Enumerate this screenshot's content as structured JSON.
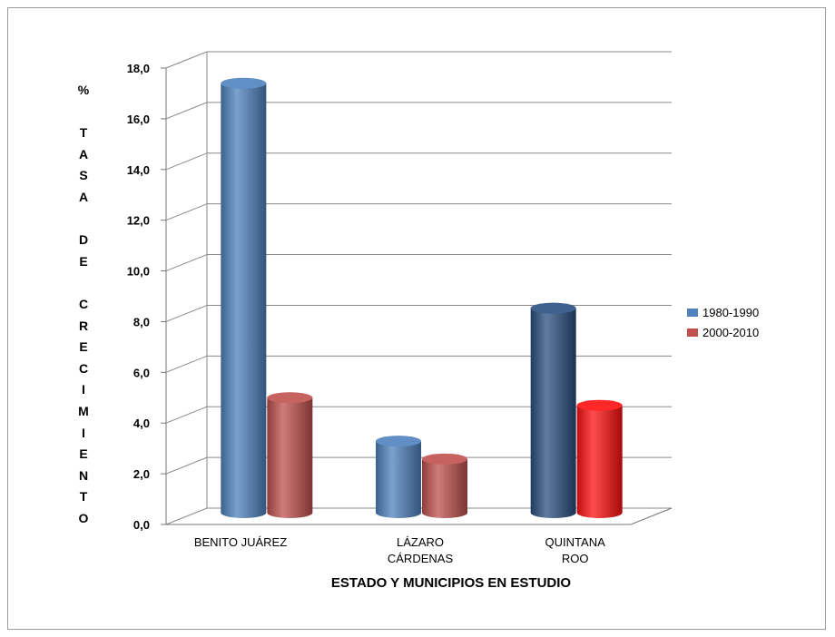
{
  "chart_data": {
    "type": "bar",
    "categories": [
      "BENITO JUÁREZ",
      "LÁZARO CÁRDENAS",
      "QUINTANA ROO"
    ],
    "category_lines": [
      [
        "BENITO JUÁREZ"
      ],
      [
        "LÁZARO",
        "CÁRDENAS"
      ],
      [
        "QUINTANA",
        "ROO"
      ]
    ],
    "series": [
      {
        "name": "1980-1990",
        "color": "#4f81bd",
        "values": [
          16.8,
          2.8,
          8.0
        ]
      },
      {
        "name": "2000-2010",
        "color": "#c0504d",
        "values": [
          4.5,
          2.1,
          4.2
        ]
      }
    ],
    "point_colors": {
      "1980-1990": [
        "#4f81bd",
        "#4f81bd",
        "#2a4f80"
      ],
      "2000-2010": [
        "#c0504d",
        "#c0504d",
        "#ff1010"
      ]
    },
    "ylim": [
      0,
      18
    ],
    "yticks": [
      "0,0",
      "2,0",
      "4,0",
      "6,0",
      "8,0",
      "10,0",
      "12,0",
      "14,0",
      "16,0",
      "18,0"
    ],
    "ylabel": "% TASA DE CRECIMIENTO",
    "ylabel_lines": [
      "%",
      "",
      "T",
      "A",
      "S",
      "A",
      "",
      "D",
      "E",
      "",
      "C",
      "R",
      "E",
      "C",
      "I",
      "M",
      "I",
      "E",
      "N",
      "T",
      "O"
    ],
    "xlabel": "ESTADO Y MUNICIPIOS EN ESTUDIO",
    "grid": true,
    "legend_position": "right"
  }
}
